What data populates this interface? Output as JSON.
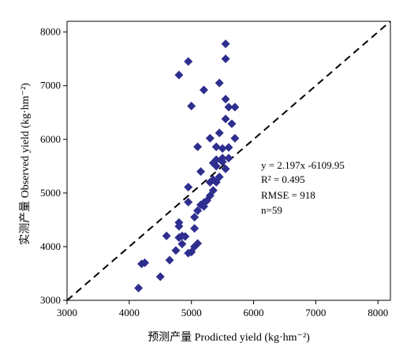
{
  "chart_data": {
    "type": "scatter",
    "xlabel": "预测产量 Prodicted yield (kg·hm⁻²)",
    "ylabel": "实测产量 Observed yield (kg·hm⁻²)",
    "xlim": [
      3000,
      8200
    ],
    "ylim": [
      3000,
      8200
    ],
    "xticks": [
      "3000",
      "4000",
      "5000",
      "6000",
      "7000",
      "8000"
    ],
    "yticks": [
      "3000",
      "4000",
      "5000",
      "6000",
      "7000",
      "8000"
    ],
    "grid": false,
    "marker": "diamond",
    "marker_color": "#2e2e8f",
    "line_style": "dashed",
    "line_label": "1:1",
    "line": [
      [
        3000,
        3000
      ],
      [
        8200,
        8200
      ]
    ],
    "points": [
      [
        4150,
        3230
      ],
      [
        4200,
        3680
      ],
      [
        4250,
        3700
      ],
      [
        4500,
        3440
      ],
      [
        4600,
        4200
      ],
      [
        4650,
        3750
      ],
      [
        4750,
        3930
      ],
      [
        4800,
        4380
      ],
      [
        4800,
        4450
      ],
      [
        4800,
        4170
      ],
      [
        4850,
        4050
      ],
      [
        4900,
        4190
      ],
      [
        4950,
        4830
      ],
      [
        4950,
        3880
      ],
      [
        5000,
        3900
      ],
      [
        5050,
        4000
      ],
      [
        5050,
        4340
      ],
      [
        5100,
        4060
      ],
      [
        5050,
        4550
      ],
      [
        5100,
        4670
      ],
      [
        5150,
        4780
      ],
      [
        5200,
        4820
      ],
      [
        5250,
        4860
      ],
      [
        5200,
        4750
      ],
      [
        5300,
        4950
      ],
      [
        5300,
        5200
      ],
      [
        5350,
        5250
      ],
      [
        5350,
        5050
      ],
      [
        5400,
        5200
      ],
      [
        5450,
        5300
      ],
      [
        5400,
        5500
      ],
      [
        5350,
        5560
      ],
      [
        5400,
        5620
      ],
      [
        5500,
        5580
      ],
      [
        5550,
        5450
      ],
      [
        5500,
        5650
      ],
      [
        5600,
        5650
      ],
      [
        5400,
        5860
      ],
      [
        5500,
        5830
      ],
      [
        5600,
        5850
      ],
      [
        5450,
        6120
      ],
      [
        5300,
        6020
      ],
      [
        5550,
        6380
      ],
      [
        5650,
        6290
      ],
      [
        5700,
        6020
      ],
      [
        5600,
        6600
      ],
      [
        5700,
        6600
      ],
      [
        5550,
        6750
      ],
      [
        5450,
        7050
      ],
      [
        5200,
        6920
      ],
      [
        5000,
        6620
      ],
      [
        4800,
        7200
      ],
      [
        4950,
        7450
      ],
      [
        5550,
        7500
      ],
      [
        5550,
        7780
      ],
      [
        5100,
        5860
      ],
      [
        4950,
        5110
      ],
      [
        4850,
        4200
      ],
      [
        5150,
        5400
      ]
    ]
  },
  "annotation": {
    "eq": "y = 2.197x -6109.95",
    "r2": "R² = 0.495",
    "rmse": "RMSE = 918",
    "n": "n=59"
  }
}
